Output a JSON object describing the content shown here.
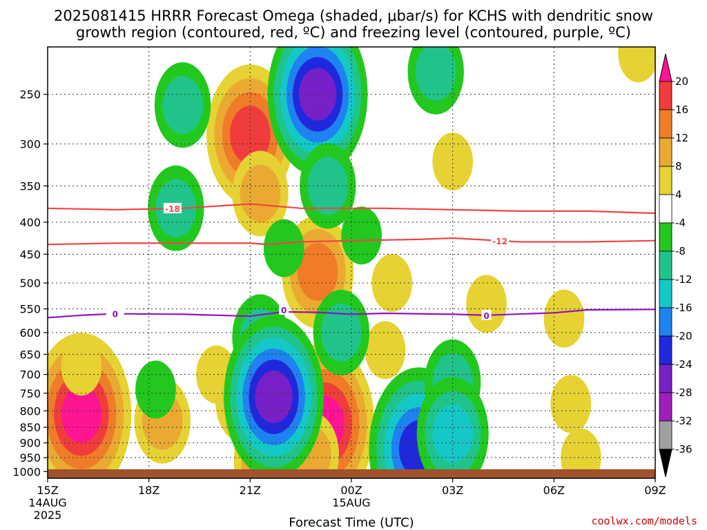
{
  "header": {
    "title_line1": "2025081415 HRRR Forecast Omega (shaded, μbar/s) for KCHS with dendritic snow",
    "title_line2": "growth region (contoured, red, ºC) and freezing level (contoured, purple, ºC)"
  },
  "footer": {
    "credit": "coolwx.com/models"
  },
  "chart_data": {
    "type": "heatmap",
    "xlabel": "Forecast Time (UTC)",
    "x_ticks": [
      {
        "hour": 0,
        "label": "15Z",
        "sub1": "14AUG",
        "sub2": "2025"
      },
      {
        "hour": 3,
        "label": "18Z",
        "sub1": "",
        "sub2": ""
      },
      {
        "hour": 6,
        "label": "21Z",
        "sub1": "",
        "sub2": ""
      },
      {
        "hour": 9,
        "label": "00Z",
        "sub1": "15AUG",
        "sub2": ""
      },
      {
        "hour": 12,
        "label": "03Z",
        "sub1": "",
        "sub2": ""
      },
      {
        "hour": 15,
        "label": "06Z",
        "sub1": "",
        "sub2": ""
      },
      {
        "hour": 18,
        "label": "09Z",
        "sub1": "",
        "sub2": ""
      }
    ],
    "xlim": [
      0,
      18
    ],
    "y_ticks": [
      250,
      300,
      350,
      400,
      450,
      500,
      550,
      600,
      650,
      700,
      750,
      800,
      850,
      900,
      950,
      1000
    ],
    "y_unit": "hPa",
    "y_scale": "log",
    "ylim": [
      1025,
      210
    ],
    "grid": true,
    "colorbar": {
      "labels": [
        "20",
        "16",
        "12",
        "8",
        "4",
        "-4",
        "-8",
        "-12",
        "-16",
        "-20",
        "-24",
        "-28",
        "-32",
        "-36"
      ],
      "colors": [
        "#ff1493",
        "#f03c3c",
        "#f07c28",
        "#eaaa32",
        "#e6d232",
        "#ffffff",
        "#22c81e",
        "#20c48a",
        "#14c8c8",
        "#1e82f0",
        "#2028dc",
        "#7820c8",
        "#a01ebe",
        "#a0a0a0",
        "#000000"
      ]
    },
    "omega_cells": [
      {
        "t": 1.0,
        "p": 810,
        "v": 22
      },
      {
        "t": 1.0,
        "p": 680,
        "v": 6
      },
      {
        "t": 3.4,
        "p": 830,
        "v": 10
      },
      {
        "t": 3.2,
        "p": 740,
        "v": 6
      },
      {
        "t": 5.0,
        "p": 700,
        "v": 5
      },
      {
        "t": 5.8,
        "p": 770,
        "v": 9
      },
      {
        "t": 6.0,
        "p": 290,
        "v": 18
      },
      {
        "t": 6.3,
        "p": 360,
        "v": 8
      },
      {
        "t": 7.0,
        "p": 965,
        "v": 20
      },
      {
        "t": 8.0,
        "p": 480,
        "v": 14
      },
      {
        "t": 8.2,
        "p": 840,
        "v": 20
      },
      {
        "t": 7.8,
        "p": 940,
        "v": 10
      },
      {
        "t": 10.2,
        "p": 500,
        "v": 6
      },
      {
        "t": 10.0,
        "p": 640,
        "v": 5
      },
      {
        "t": 12.0,
        "p": 320,
        "v": 6
      },
      {
        "t": 12.0,
        "p": 850,
        "v": 5
      },
      {
        "t": 13.0,
        "p": 540,
        "v": 4
      },
      {
        "t": 15.3,
        "p": 570,
        "v": 5
      },
      {
        "t": 15.5,
        "p": 780,
        "v": 4
      },
      {
        "t": 15.8,
        "p": 950,
        "v": 4
      },
      {
        "t": 17.5,
        "p": 215,
        "v": 5
      },
      {
        "t": 4.0,
        "p": 260,
        "v": -8
      },
      {
        "t": 3.8,
        "p": 380,
        "v": -10
      },
      {
        "t": 8.0,
        "p": 250,
        "v": -24
      },
      {
        "t": 8.3,
        "p": 350,
        "v": -10
      },
      {
        "t": 9.3,
        "p": 420,
        "v": -6
      },
      {
        "t": 7.0,
        "p": 440,
        "v": -7
      },
      {
        "t": 6.3,
        "p": 610,
        "v": -9
      },
      {
        "t": 8.7,
        "p": 600,
        "v": -8
      },
      {
        "t": 6.7,
        "p": 760,
        "v": -24
      },
      {
        "t": 11.0,
        "p": 920,
        "v": -20
      },
      {
        "t": 12.0,
        "p": 720,
        "v": -10
      },
      {
        "t": 12.0,
        "p": 870,
        "v": -12
      },
      {
        "t": 11.5,
        "p": 230,
        "v": -8
      },
      {
        "t": 3.2,
        "p": 740,
        "v": -5
      }
    ],
    "isotherms": [
      {
        "label": "-18",
        "color": "#ee4444",
        "label_hour": 3.7,
        "points": [
          [
            0,
            380
          ],
          [
            2,
            382
          ],
          [
            4,
            380
          ],
          [
            6,
            374
          ],
          [
            7.5,
            380
          ],
          [
            10,
            380
          ],
          [
            12,
            382
          ],
          [
            14,
            384
          ],
          [
            16,
            384
          ],
          [
            18,
            387
          ]
        ]
      },
      {
        "label": "-12",
        "color": "#ee4444",
        "label_hour": 13.4,
        "points": [
          [
            0,
            434
          ],
          [
            2,
            432
          ],
          [
            4,
            432
          ],
          [
            6,
            432
          ],
          [
            6.5,
            434
          ],
          [
            7.5,
            430
          ],
          [
            9,
            428
          ],
          [
            11,
            426
          ],
          [
            12,
            424
          ],
          [
            14,
            430
          ],
          [
            16,
            430
          ],
          [
            18,
            428
          ]
        ]
      },
      {
        "label": "0",
        "color": "#9010c0",
        "label_hour": 2.0,
        "points": [
          [
            0,
            568
          ],
          [
            1,
            563
          ],
          [
            2,
            560
          ],
          [
            4,
            561
          ],
          [
            6,
            565
          ],
          [
            7,
            556
          ],
          [
            8,
            557
          ],
          [
            9,
            561
          ],
          [
            10,
            559
          ],
          [
            12,
            561
          ],
          [
            13,
            563
          ],
          [
            15,
            558
          ],
          [
            16,
            552
          ],
          [
            18,
            551
          ]
        ]
      }
    ],
    "zero_labels": [
      {
        "hour": 7.0,
        "p": 552,
        "label": "0"
      },
      {
        "hour": 13.0,
        "p": 563,
        "label": "0"
      }
    ]
  }
}
